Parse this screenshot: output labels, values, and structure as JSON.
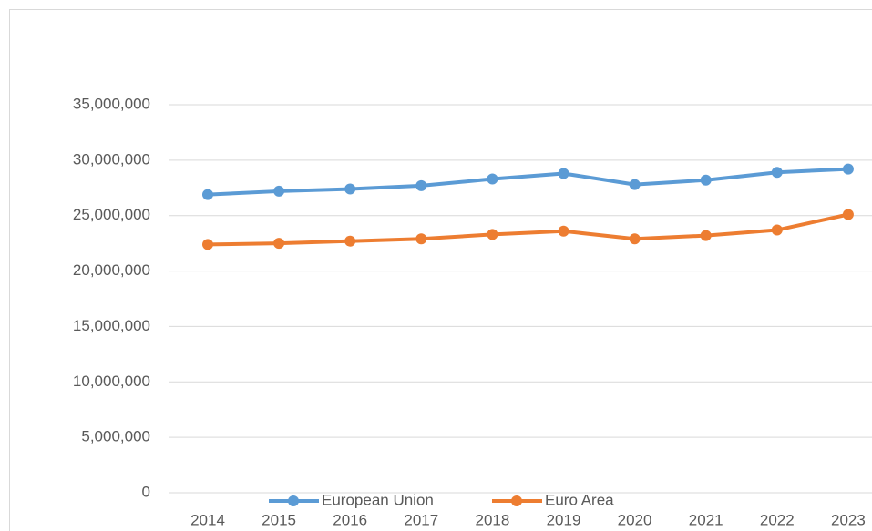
{
  "chart_data": {
    "type": "line",
    "categories": [
      "2014",
      "2015",
      "2016",
      "2017",
      "2018",
      "2019",
      "2020",
      "2021",
      "2022",
      "2023"
    ],
    "series": [
      {
        "name": "European Union",
        "color": "#5b9bd5",
        "values": [
          26900000,
          27200000,
          27400000,
          27700000,
          28300000,
          28800000,
          27800000,
          28200000,
          28900000,
          29200000
        ]
      },
      {
        "name": "Euro Area",
        "color": "#ed7d31",
        "values": [
          22400000,
          22500000,
          22700000,
          22900000,
          23300000,
          23600000,
          22900000,
          23200000,
          23700000,
          25100000
        ]
      }
    ],
    "ylim": [
      0,
      35000000
    ],
    "yticks": [
      0,
      {
        "value": 5000000,
        "label": "5,000,000"
      },
      {
        "value": 10000000,
        "label": "10,000,000"
      },
      {
        "value": 15000000,
        "label": "15,000,000"
      },
      {
        "value": 20000000,
        "label": "20,000,000"
      },
      {
        "value": 25000000,
        "label": "25,000,000"
      },
      {
        "value": 30000000,
        "label": "30,000,000"
      },
      {
        "value": 35000000,
        "label": "35,000,000"
      }
    ],
    "grid": true,
    "legend": "bottom"
  }
}
